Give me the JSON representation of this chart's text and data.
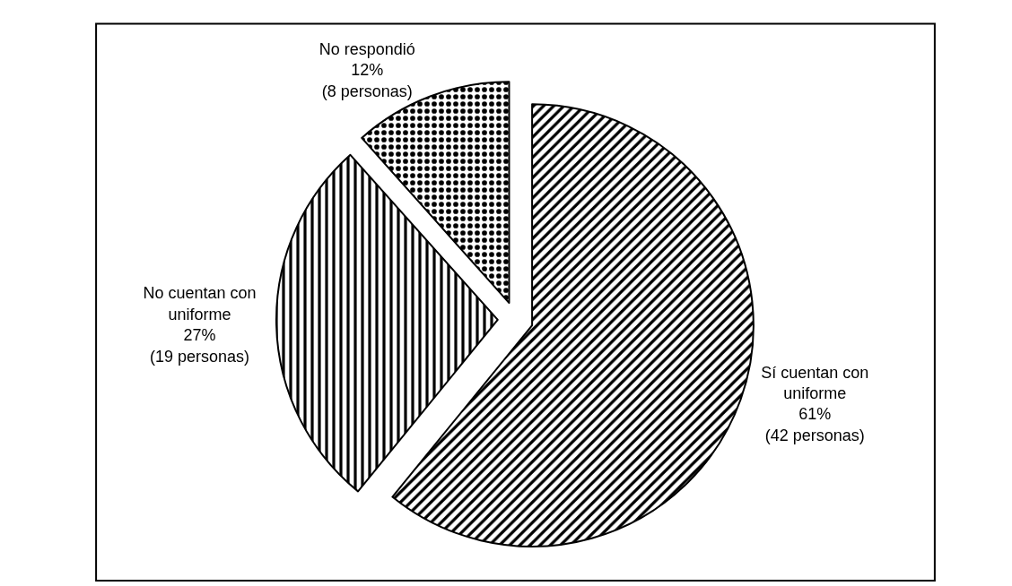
{
  "chart_data": {
    "type": "pie",
    "categories": [
      "Sí cuentan con uniforme",
      "No cuentan con uniforme",
      "No respondió"
    ],
    "values": [
      42,
      19,
      8
    ],
    "value_labels": [
      "61%\n(42 personas)",
      "27%\n(19 personas)",
      "12%\n(8 personas)"
    ],
    "colors": [
      "#000000",
      "#000000",
      "#000000"
    ],
    "legend": false
  }
}
